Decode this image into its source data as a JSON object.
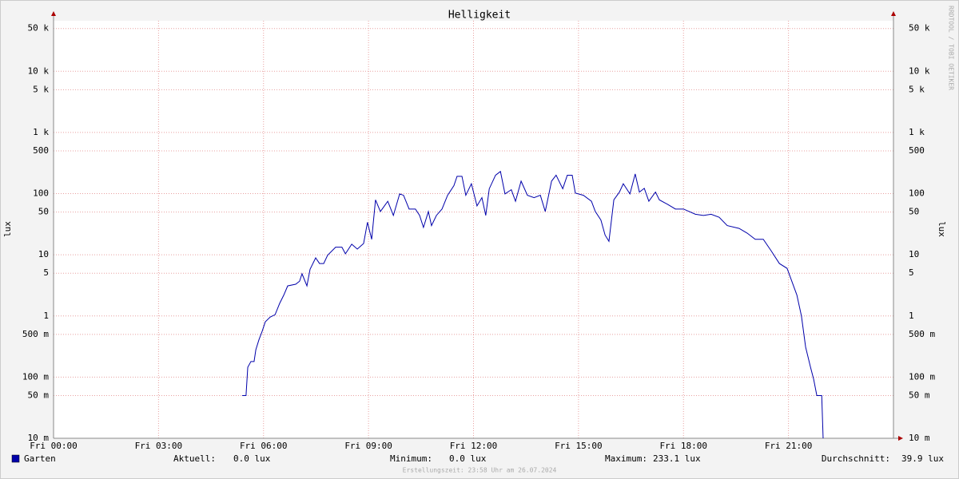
{
  "chart_data": {
    "type": "line",
    "title": "Helligkeit",
    "ylabel": "lux",
    "log_y": true,
    "grid": true,
    "xlim": [
      0,
      24
    ],
    "xticks": [
      {
        "value": 0,
        "label": "Fri 00:00"
      },
      {
        "value": 3,
        "label": "Fri 03:00"
      },
      {
        "value": 6,
        "label": "Fri 06:00"
      },
      {
        "value": 9,
        "label": "Fri 09:00"
      },
      {
        "value": 12,
        "label": "Fri 12:00"
      },
      {
        "value": 15,
        "label": "Fri 15:00"
      },
      {
        "value": 18,
        "label": "Fri 18:00"
      },
      {
        "value": 21,
        "label": "Fri 21:00"
      }
    ],
    "ylim": [
      0.01,
      67000
    ],
    "yticks": [
      {
        "value": 0.01,
        "label": "10 m"
      },
      {
        "value": 0.05,
        "label": "50 m"
      },
      {
        "value": 0.1,
        "label": "100 m"
      },
      {
        "value": 0.5,
        "label": "500 m"
      },
      1,
      5,
      10,
      50,
      100,
      500,
      {
        "value": 1000,
        "label": "1 k"
      },
      {
        "value": 5000,
        "label": "5 k"
      },
      {
        "value": 10000,
        "label": "10 k"
      },
      {
        "value": 50000,
        "label": "50 k"
      }
    ],
    "x": [
      5.39,
      5.5,
      5.55,
      5.64,
      5.73,
      5.78,
      5.87,
      5.96,
      6.05,
      6.19,
      6.33,
      6.46,
      6.58,
      6.69,
      6.92,
      7.03,
      7.1,
      7.24,
      7.33,
      7.49,
      7.6,
      7.72,
      7.83,
      8.06,
      8.24,
      8.34,
      8.52,
      8.68,
      8.86,
      8.97,
      9.09,
      9.2,
      9.34,
      9.55,
      9.71,
      9.89,
      10.0,
      10.16,
      10.34,
      10.46,
      10.57,
      10.71,
      10.8,
      10.94,
      11.1,
      11.26,
      11.44,
      11.53,
      11.67,
      11.78,
      11.94,
      12.1,
      12.24,
      12.35,
      12.45,
      12.63,
      12.77,
      12.9,
      13.08,
      13.2,
      13.36,
      13.54,
      13.73,
      13.91,
      14.05,
      14.23,
      14.36,
      14.55,
      14.68,
      14.82,
      14.91,
      15.14,
      15.37,
      15.48,
      15.64,
      15.76,
      15.87,
      16.01,
      16.17,
      16.28,
      16.47,
      16.62,
      16.74,
      16.88,
      17.01,
      17.2,
      17.31,
      17.54,
      17.77,
      18.0,
      18.34,
      18.57,
      18.79,
      19.02,
      19.25,
      19.59,
      19.82,
      20.05,
      20.28,
      20.51,
      20.74,
      20.96,
      21.08,
      21.24,
      21.37,
      21.49,
      21.63,
      21.72,
      21.81,
      21.95,
      21.99
    ],
    "series": [
      {
        "name": "Garten",
        "color": "#0000aa",
        "values": [
          0.05,
          0.05,
          0.145,
          0.18,
          0.18,
          0.28,
          0.41,
          0.56,
          0.8,
          0.96,
          1.05,
          1.6,
          2.2,
          3.1,
          3.3,
          3.7,
          4.9,
          3.1,
          5.8,
          8.9,
          7.2,
          7.2,
          9.8,
          13.3,
          13.3,
          10.4,
          14.9,
          12.4,
          15.3,
          34,
          17.9,
          79,
          51,
          75,
          44,
          99,
          94,
          56,
          56,
          44,
          28,
          51,
          30,
          44,
          56,
          94,
          135,
          192,
          192,
          94,
          145,
          63,
          86,
          44,
          120,
          200,
          230,
          99,
          116,
          75,
          160,
          94,
          86,
          94,
          51,
          160,
          200,
          120,
          200,
          200,
          102,
          94,
          75,
          51,
          37,
          21,
          16.6,
          79,
          106,
          145,
          99,
          210,
          106,
          122,
          75,
          106,
          79,
          67,
          56,
          56,
          46,
          44,
          46,
          41,
          30,
          27,
          22.6,
          17.9,
          17.9,
          11.5,
          7.2,
          6.0,
          3.9,
          2.2,
          1.0,
          0.31,
          0.145,
          0.092,
          0.05,
          0.05,
          0.01
        ]
      }
    ],
    "stats": [
      {
        "label": "Aktuell:",
        "value": "0.0 lux"
      },
      {
        "label": "Minimum:",
        "value": "0.0 lux"
      },
      {
        "label": "Maximum:",
        "value": "233.1 lux"
      },
      {
        "label": "Durchschnitt:",
        "value": "39.9 lux"
      }
    ],
    "footer": "Erstellungszeit: 23:58 Uhr am 26.07.2024",
    "watermark": "RRDTOOL / TOBI OETIKER"
  }
}
